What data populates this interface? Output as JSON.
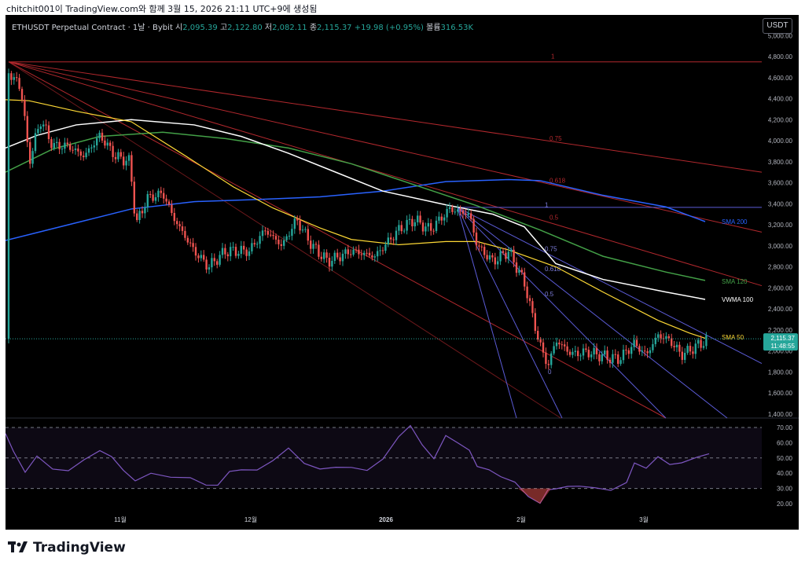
{
  "snapshot_caption": "chitchit001이 TradingView.com와 함께 3월 15, 2026 21:11 UTC+9에 생성됨",
  "legend": {
    "symbol": "ETHUSDT Perpetual Contract · 1날 · Bybit",
    "open_label": "시",
    "open": "2,095.39",
    "high_label": "고",
    "high": "2,122.80",
    "low_label": "저",
    "low": "2,082.11",
    "close_label": "종",
    "close": "2,115.37",
    "change": "+19.98 (+0.95%)",
    "volume_label": "볼륨",
    "volume": "316.53K"
  },
  "currency_button": "USDT",
  "price_axis": [
    "5,000.00",
    "4,800.00",
    "4,600.00",
    "4,400.00",
    "4,200.00",
    "4,000.00",
    "3,800.00",
    "3,600.00",
    "3,400.00",
    "3,200.00",
    "3,000.00",
    "2,800.00",
    "2,600.00",
    "2,400.00",
    "2,200.00",
    "2,000.00",
    "1,800.00",
    "1,600.00",
    "1,400.00"
  ],
  "last_price": {
    "value": "2,115.37",
    "countdown": "11:48:55",
    "color": "#26a69a"
  },
  "rsi_axis": [
    "70.00",
    "60.00",
    "50.00",
    "40.00",
    "30.00",
    "20.00"
  ],
  "time_axis": [
    "11월",
    "12월",
    "2026",
    "2월",
    "3월"
  ],
  "indicator_labels": {
    "sma200": "SMA 200",
    "sma120": "SMA 120",
    "vwma100": "VWMA 100",
    "sma50": "SMA 50"
  },
  "fib_labels_red": [
    "1",
    "0.75",
    "0.618",
    "0.5"
  ],
  "fib_labels_purple": [
    "1",
    "0.75",
    "0.618",
    "0.5",
    "0"
  ],
  "colors": {
    "up": "#26a69a",
    "down": "#ef5350",
    "sma200": "#2962ff",
    "sma120": "#43a047",
    "vwma100": "#ffffff",
    "sma50": "#fdd835",
    "fan_red": "#b2282d",
    "fan_purple": "#5b5bd6",
    "rsi": "#7e57c2"
  },
  "footer_brand": "TradingView"
}
